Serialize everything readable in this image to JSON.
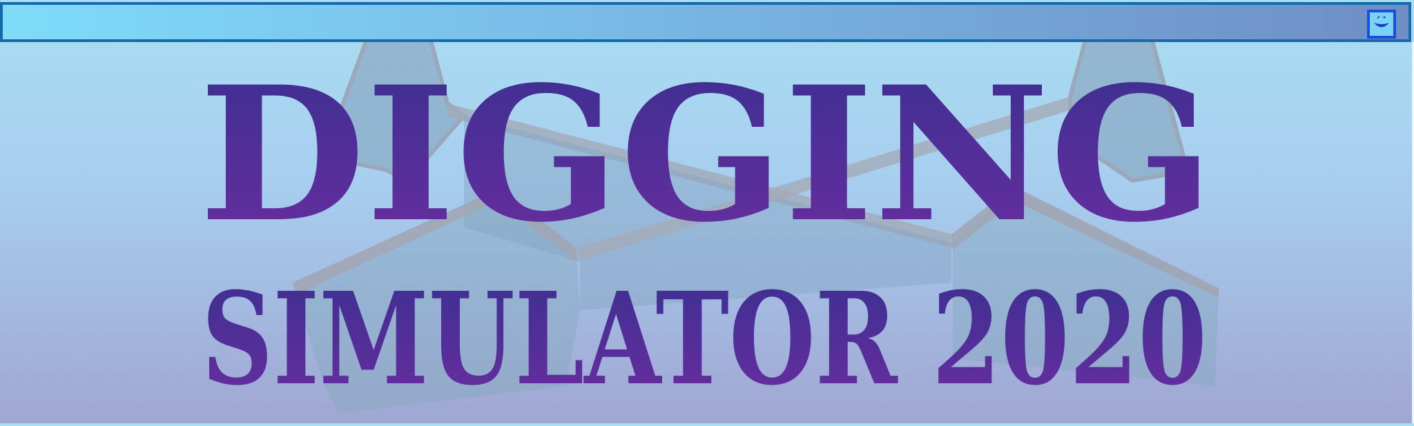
{
  "window": {
    "menu_icon": "smiley-face-icon"
  },
  "title": {
    "line1": "DIGGING",
    "line2": "SIMULATOR 2020"
  },
  "colors": {
    "title_top": "#3a2f90",
    "title_bottom": "#6a2ea0",
    "bar_border": "#1769ad",
    "button_border": "#1c4fd6"
  }
}
